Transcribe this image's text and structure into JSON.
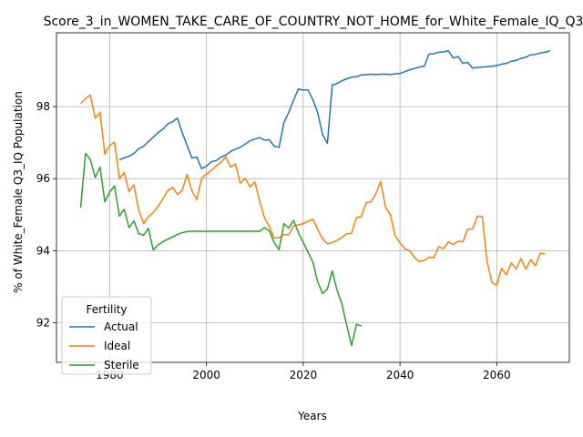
{
  "chart_data": {
    "type": "line",
    "title": "Score_3_in_WOMEN_TAKE_CARE_OF_COUNTRY_NOT_HOME_for_White_Female_IQ_Q3",
    "xlabel": "Years",
    "ylabel": "% of White_Female Q3_IQ Population",
    "xlim": [
      1969,
      2075
    ],
    "ylim": [
      90.9,
      100.05
    ],
    "xticks": [
      1980,
      2000,
      2020,
      2040,
      2060
    ],
    "yticks": [
      92,
      94,
      96,
      98
    ],
    "grid": true,
    "legend": {
      "title": "Fertility",
      "position": "lower-left"
    },
    "series": [
      {
        "name": "Actual",
        "color": "#1f77b4",
        "points": [
          [
            1982,
            96.52
          ],
          [
            1983,
            96.58
          ],
          [
            1984,
            96.62
          ],
          [
            1985,
            96.7
          ],
          [
            1986,
            96.83
          ],
          [
            1987,
            96.9
          ],
          [
            1988,
            97.03
          ],
          [
            1989,
            97.15
          ],
          [
            1990,
            97.28
          ],
          [
            1991,
            97.37
          ],
          [
            1992,
            97.52
          ],
          [
            1993,
            97.58
          ],
          [
            1994,
            97.68
          ],
          [
            1995,
            97.27
          ],
          [
            1996,
            96.92
          ],
          [
            1997,
            96.57
          ],
          [
            1998,
            96.6
          ],
          [
            1999,
            96.28
          ],
          [
            2000,
            96.35
          ],
          [
            2001,
            96.47
          ],
          [
            2002,
            96.5
          ],
          [
            2003,
            96.6
          ],
          [
            2004,
            96.65
          ],
          [
            2005,
            96.76
          ],
          [
            2006,
            96.82
          ],
          [
            2007,
            96.87
          ],
          [
            2008,
            96.96
          ],
          [
            2009,
            97.05
          ],
          [
            2010,
            97.1
          ],
          [
            2011,
            97.14
          ],
          [
            2012,
            97.07
          ],
          [
            2013,
            97.08
          ],
          [
            2014,
            96.9
          ],
          [
            2015,
            96.87
          ],
          [
            2016,
            97.55
          ],
          [
            2017,
            97.84
          ],
          [
            2018,
            98.18
          ],
          [
            2019,
            98.49
          ],
          [
            2020,
            98.46
          ],
          [
            2021,
            98.46
          ],
          [
            2022,
            98.19
          ],
          [
            2023,
            97.83
          ],
          [
            2024,
            97.22
          ],
          [
            2025,
            96.98
          ],
          [
            2026,
            98.6
          ],
          [
            2027,
            98.64
          ],
          [
            2028,
            98.72
          ],
          [
            2029,
            98.77
          ],
          [
            2030,
            98.82
          ],
          [
            2031,
            98.83
          ],
          [
            2032,
            98.88
          ],
          [
            2033,
            98.89
          ],
          [
            2034,
            98.9
          ],
          [
            2035,
            98.89
          ],
          [
            2036,
            98.9
          ],
          [
            2037,
            98.9
          ],
          [
            2038,
            98.89
          ],
          [
            2039,
            98.91
          ],
          [
            2040,
            98.92
          ],
          [
            2041,
            98.97
          ],
          [
            2042,
            99.02
          ],
          [
            2043,
            99.06
          ],
          [
            2044,
            99.1
          ],
          [
            2045,
            99.12
          ],
          [
            2046,
            99.46
          ],
          [
            2047,
            99.47
          ],
          [
            2048,
            99.51
          ],
          [
            2049,
            99.52
          ],
          [
            2050,
            99.55
          ],
          [
            2051,
            99.35
          ],
          [
            2052,
            99.39
          ],
          [
            2053,
            99.2
          ],
          [
            2054,
            99.23
          ],
          [
            2055,
            99.07
          ],
          [
            2056,
            99.09
          ],
          [
            2057,
            99.1
          ],
          [
            2058,
            99.11
          ],
          [
            2059,
            99.12
          ],
          [
            2060,
            99.14
          ],
          [
            2061,
            99.18
          ],
          [
            2062,
            99.2
          ],
          [
            2063,
            99.26
          ],
          [
            2064,
            99.28
          ],
          [
            2065,
            99.34
          ],
          [
            2066,
            99.37
          ],
          [
            2067,
            99.44
          ],
          [
            2068,
            99.45
          ],
          [
            2069,
            99.49
          ],
          [
            2070,
            99.51
          ],
          [
            2071,
            99.55
          ]
        ]
      },
      {
        "name": "Ideal",
        "color": "#ff7f0e",
        "points": [
          [
            1974,
            98.08
          ],
          [
            1975,
            98.22
          ],
          [
            1976,
            98.32
          ],
          [
            1977,
            97.68
          ],
          [
            1978,
            97.84
          ],
          [
            1979,
            96.68
          ],
          [
            1980,
            96.93
          ],
          [
            1981,
            97.01
          ],
          [
            1982,
            96.0
          ],
          [
            1983,
            96.17
          ],
          [
            1984,
            95.64
          ],
          [
            1985,
            95.83
          ],
          [
            1986,
            95.13
          ],
          [
            1987,
            94.75
          ],
          [
            1988,
            94.95
          ],
          [
            1989,
            95.06
          ],
          [
            1990,
            95.23
          ],
          [
            1991,
            95.44
          ],
          [
            1992,
            95.67
          ],
          [
            1993,
            95.76
          ],
          [
            1994,
            95.56
          ],
          [
            1995,
            95.68
          ],
          [
            1996,
            96.12
          ],
          [
            1997,
            95.66
          ],
          [
            1998,
            95.42
          ],
          [
            1999,
            96.01
          ],
          [
            2000,
            96.13
          ],
          [
            2001,
            96.23
          ],
          [
            2002,
            96.35
          ],
          [
            2003,
            96.46
          ],
          [
            2004,
            96.6
          ],
          [
            2005,
            96.32
          ],
          [
            2006,
            96.41
          ],
          [
            2007,
            95.87
          ],
          [
            2008,
            96.01
          ],
          [
            2009,
            95.77
          ],
          [
            2010,
            95.91
          ],
          [
            2011,
            95.37
          ],
          [
            2012,
            94.91
          ],
          [
            2013,
            94.67
          ],
          [
            2014,
            94.35
          ],
          [
            2015,
            94.36
          ],
          [
            2016,
            94.45
          ],
          [
            2017,
            94.44
          ],
          [
            2018,
            94.69
          ],
          [
            2019,
            94.72
          ],
          [
            2020,
            94.75
          ],
          [
            2021,
            94.82
          ],
          [
            2022,
            94.88
          ],
          [
            2023,
            94.59
          ],
          [
            2024,
            94.33
          ],
          [
            2025,
            94.19
          ],
          [
            2026,
            94.23
          ],
          [
            2027,
            94.29
          ],
          [
            2028,
            94.37
          ],
          [
            2029,
            94.47
          ],
          [
            2030,
            94.49
          ],
          [
            2031,
            94.92
          ],
          [
            2032,
            94.95
          ],
          [
            2033,
            95.33
          ],
          [
            2034,
            95.36
          ],
          [
            2035,
            95.58
          ],
          [
            2036,
            95.92
          ],
          [
            2037,
            95.21
          ],
          [
            2038,
            95.0
          ],
          [
            2039,
            94.41
          ],
          [
            2040,
            94.22
          ],
          [
            2041,
            94.05
          ],
          [
            2042,
            94.0
          ],
          [
            2043,
            93.81
          ],
          [
            2044,
            93.7
          ],
          [
            2045,
            93.73
          ],
          [
            2046,
            93.82
          ],
          [
            2047,
            93.81
          ],
          [
            2048,
            94.11
          ],
          [
            2049,
            94.06
          ],
          [
            2050,
            94.24
          ],
          [
            2051,
            94.17
          ],
          [
            2052,
            94.26
          ],
          [
            2053,
            94.25
          ],
          [
            2054,
            94.6
          ],
          [
            2055,
            94.6
          ],
          [
            2056,
            94.96
          ],
          [
            2057,
            94.95
          ],
          [
            2058,
            93.7
          ],
          [
            2059,
            93.12
          ],
          [
            2060,
            93.04
          ],
          [
            2061,
            93.51
          ],
          [
            2062,
            93.33
          ],
          [
            2063,
            93.66
          ],
          [
            2064,
            93.49
          ],
          [
            2065,
            93.78
          ],
          [
            2066,
            93.49
          ],
          [
            2067,
            93.75
          ],
          [
            2068,
            93.58
          ],
          [
            2069,
            93.94
          ],
          [
            2070,
            93.9
          ]
        ]
      },
      {
        "name": "Sterile",
        "color": "#2ca02c",
        "points": [
          [
            1974,
            95.2
          ],
          [
            1975,
            96.7
          ],
          [
            1976,
            96.53
          ],
          [
            1977,
            96.03
          ],
          [
            1978,
            96.32
          ],
          [
            1979,
            95.36
          ],
          [
            1980,
            95.63
          ],
          [
            1981,
            95.8
          ],
          [
            1982,
            94.96
          ],
          [
            1983,
            95.15
          ],
          [
            1984,
            94.64
          ],
          [
            1985,
            94.83
          ],
          [
            1986,
            94.47
          ],
          [
            1987,
            94.43
          ],
          [
            1988,
            94.62
          ],
          [
            1989,
            94.02
          ],
          [
            1990,
            94.16
          ],
          [
            1991,
            94.25
          ],
          [
            1992,
            94.32
          ],
          [
            1993,
            94.38
          ],
          [
            1994,
            94.45
          ],
          [
            1995,
            94.5
          ],
          [
            1996,
            94.53
          ],
          [
            1997,
            94.54
          ],
          [
            1998,
            94.54
          ],
          [
            1999,
            94.54
          ],
          [
            2000,
            94.54
          ],
          [
            2001,
            94.54
          ],
          [
            2002,
            94.54
          ],
          [
            2003,
            94.54
          ],
          [
            2004,
            94.54
          ],
          [
            2005,
            94.54
          ],
          [
            2006,
            94.54
          ],
          [
            2007,
            94.54
          ],
          [
            2008,
            94.54
          ],
          [
            2009,
            94.54
          ],
          [
            2010,
            94.54
          ],
          [
            2011,
            94.54
          ],
          [
            2012,
            94.64
          ],
          [
            2013,
            94.55
          ],
          [
            2014,
            94.22
          ],
          [
            2015,
            94.03
          ],
          [
            2016,
            94.75
          ],
          [
            2017,
            94.63
          ],
          [
            2018,
            94.84
          ],
          [
            2019,
            94.5
          ],
          [
            2020,
            94.23
          ],
          [
            2021,
            93.96
          ],
          [
            2022,
            93.68
          ],
          [
            2023,
            93.13
          ],
          [
            2024,
            92.81
          ],
          [
            2025,
            92.94
          ],
          [
            2026,
            93.44
          ],
          [
            2027,
            92.9
          ],
          [
            2028,
            92.52
          ],
          [
            2029,
            91.92
          ],
          [
            2030,
            91.37
          ],
          [
            2031,
            91.96
          ],
          [
            2032,
            91.91
          ]
        ]
      }
    ]
  }
}
